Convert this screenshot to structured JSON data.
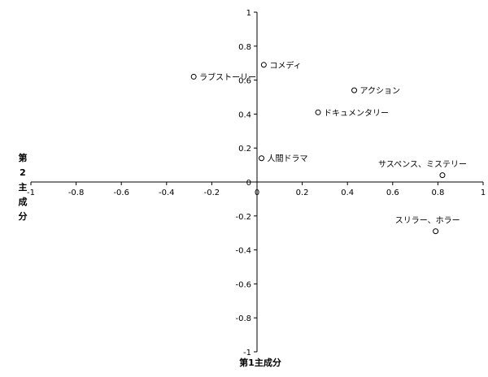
{
  "chart_data": {
    "type": "scatter",
    "title": "",
    "xlabel": "第1主成分",
    "ylabel": "第2主成分",
    "xlim": [
      -1,
      1
    ],
    "ylim": [
      -1,
      1
    ],
    "x_ticks": [
      "-1",
      "-0.8",
      "-0.6",
      "-0.4",
      "-0.2",
      "0",
      "0.2",
      "0.4",
      "0.6",
      "0.8",
      "1"
    ],
    "y_ticks": [
      "1",
      "0.8",
      "0.6",
      "0.4",
      "0.2",
      "0",
      "-0.2",
      "-0.4",
      "-0.6",
      "-0.8",
      "-1"
    ],
    "grid": false,
    "legend": "none",
    "points": [
      {
        "label": "ラブストーリー",
        "x": -0.28,
        "y": 0.62
      },
      {
        "label": "コメディ",
        "x": 0.03,
        "y": 0.69
      },
      {
        "label": "アクション",
        "x": 0.43,
        "y": 0.54
      },
      {
        "label": "ドキュメンタリー",
        "x": 0.27,
        "y": 0.41
      },
      {
        "label": "人間ドラマ",
        "x": 0.02,
        "y": 0.14
      },
      {
        "label": "サスペンス、ミステリー",
        "x": 0.82,
        "y": 0.04
      },
      {
        "label": "スリラー、ホラー",
        "x": 0.79,
        "y": -0.29
      }
    ]
  }
}
